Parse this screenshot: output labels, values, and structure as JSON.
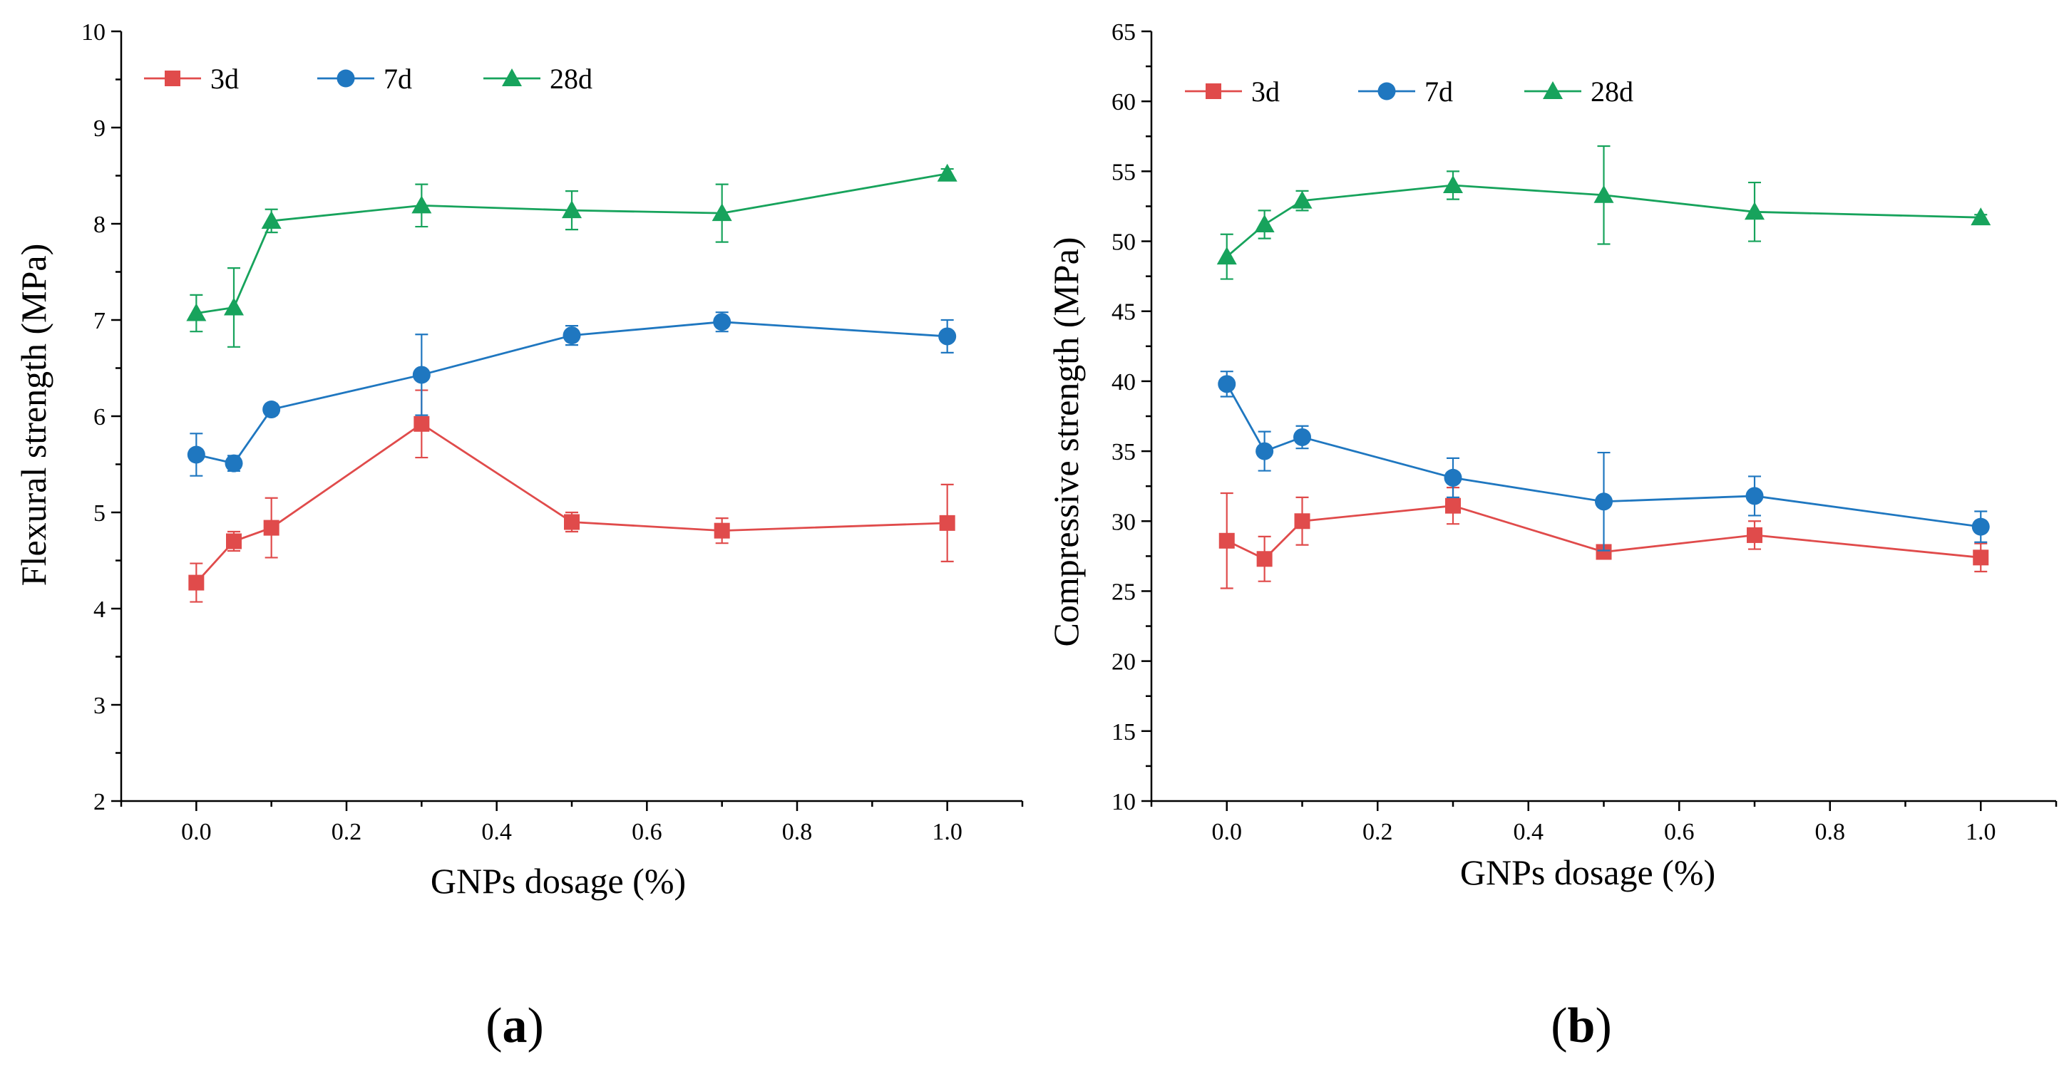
{
  "chart_data": [
    {
      "type": "line",
      "panel_label": "(a)",
      "panel_letter": "a",
      "xlabel": "GNPs dosage (%)",
      "ylabel": "Flexural strength (MPa)",
      "xlim": [
        -0.1,
        1.1
      ],
      "ylim": [
        2,
        10
      ],
      "xticks": [
        "0.0",
        "0.2",
        "0.4",
        "0.6",
        "0.8",
        "1.0"
      ],
      "yticks": [
        "2",
        "3",
        "4",
        "5",
        "6",
        "7",
        "8",
        "9",
        "10"
      ],
      "legend_position": "top-left",
      "x": [
        0.0,
        0.05,
        0.1,
        0.3,
        0.5,
        0.7,
        1.0
      ],
      "series": [
        {
          "name": "3d",
          "color": "#e04b4b",
          "marker": "square",
          "values": [
            4.27,
            4.7,
            4.84,
            5.92,
            4.9,
            4.81,
            4.89
          ],
          "errors": [
            0.2,
            0.1,
            0.31,
            0.35,
            0.1,
            0.13,
            0.4
          ]
        },
        {
          "name": "7d",
          "color": "#1f77c0",
          "marker": "circle",
          "values": [
            5.6,
            5.51,
            6.07,
            6.43,
            6.84,
            6.98,
            6.83
          ],
          "errors": [
            0.22,
            0.08,
            0.06,
            0.42,
            0.1,
            0.1,
            0.17
          ]
        },
        {
          "name": "28d",
          "color": "#17a35c",
          "marker": "triangle",
          "values": [
            7.07,
            7.13,
            8.03,
            8.19,
            8.14,
            8.11,
            8.52
          ],
          "errors": [
            0.19,
            0.41,
            0.12,
            0.22,
            0.2,
            0.3,
            0.05
          ]
        }
      ]
    },
    {
      "type": "line",
      "panel_label": "(b)",
      "panel_letter": "b",
      "xlabel": "GNPs dosage (%)",
      "ylabel": "Compressive strength (MPa)",
      "xlim": [
        -0.1,
        1.1
      ],
      "ylim": [
        10,
        65
      ],
      "xticks": [
        "0.0",
        "0.2",
        "0.4",
        "0.6",
        "0.8",
        "1.0"
      ],
      "yticks": [
        "10",
        "15",
        "20",
        "25",
        "30",
        "35",
        "40",
        "45",
        "50",
        "55",
        "60",
        "65"
      ],
      "legend_position": "top-left",
      "x": [
        0.0,
        0.05,
        0.1,
        0.3,
        0.5,
        0.7,
        1.0
      ],
      "series": [
        {
          "name": "3d",
          "color": "#e04b4b",
          "marker": "square",
          "values": [
            28.6,
            27.3,
            30.0,
            31.1,
            27.8,
            29.0,
            27.4
          ],
          "errors": [
            3.4,
            1.6,
            1.7,
            1.3,
            0.3,
            1.0,
            1.0
          ]
        },
        {
          "name": "7d",
          "color": "#1f77c0",
          "marker": "circle",
          "values": [
            39.8,
            35.0,
            36.0,
            33.1,
            31.4,
            31.8,
            29.6
          ],
          "errors": [
            0.9,
            1.4,
            0.8,
            1.4,
            3.5,
            1.4,
            1.1
          ]
        },
        {
          "name": "28d",
          "color": "#17a35c",
          "marker": "triangle",
          "values": [
            48.9,
            51.2,
            52.9,
            54.0,
            53.3,
            52.1,
            51.7
          ],
          "errors": [
            1.6,
            1.0,
            0.7,
            1.0,
            3.5,
            2.1,
            0.2
          ]
        }
      ]
    }
  ]
}
